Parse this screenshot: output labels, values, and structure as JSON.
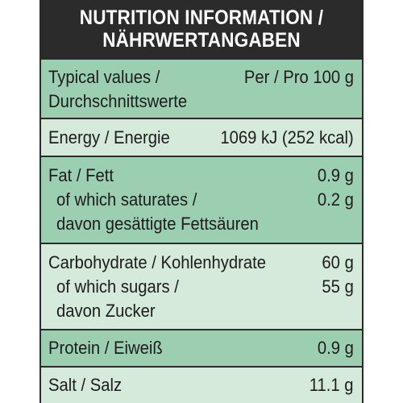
{
  "header": {
    "line1": "NUTRITION INFORMATION /",
    "line2": "NÄHRWERTANGABEN"
  },
  "typical": {
    "label1": "Typical values /",
    "label2": "Durchschnittswerte",
    "value": "Per / Pro 100 g"
  },
  "energy": {
    "label": "Energy / Energie",
    "value": "1069 kJ (252 kcal)"
  },
  "fat": {
    "label": "Fat / Fett",
    "value": "0.9 g",
    "sat_label1": "of which saturates /",
    "sat_label2": "davon gesättigte Fettsäuren",
    "sat_value": "0.2 g"
  },
  "carbs": {
    "label": "Carbohydrate / Kohlenhydrate",
    "value": "60 g",
    "sugars_label1": "of which sugars /",
    "sugars_label2": "davon Zucker",
    "sugars_value": "55 g"
  },
  "protein": {
    "label": "Protein / Eiweiß",
    "value": "0.9 g"
  },
  "salt": {
    "label": "Salt / Salz",
    "value": "11.1 g"
  },
  "colors": {
    "header_bg": "#2b2b2b",
    "row_dark": "#9ccfb1",
    "row_light": "#d5eadb"
  }
}
